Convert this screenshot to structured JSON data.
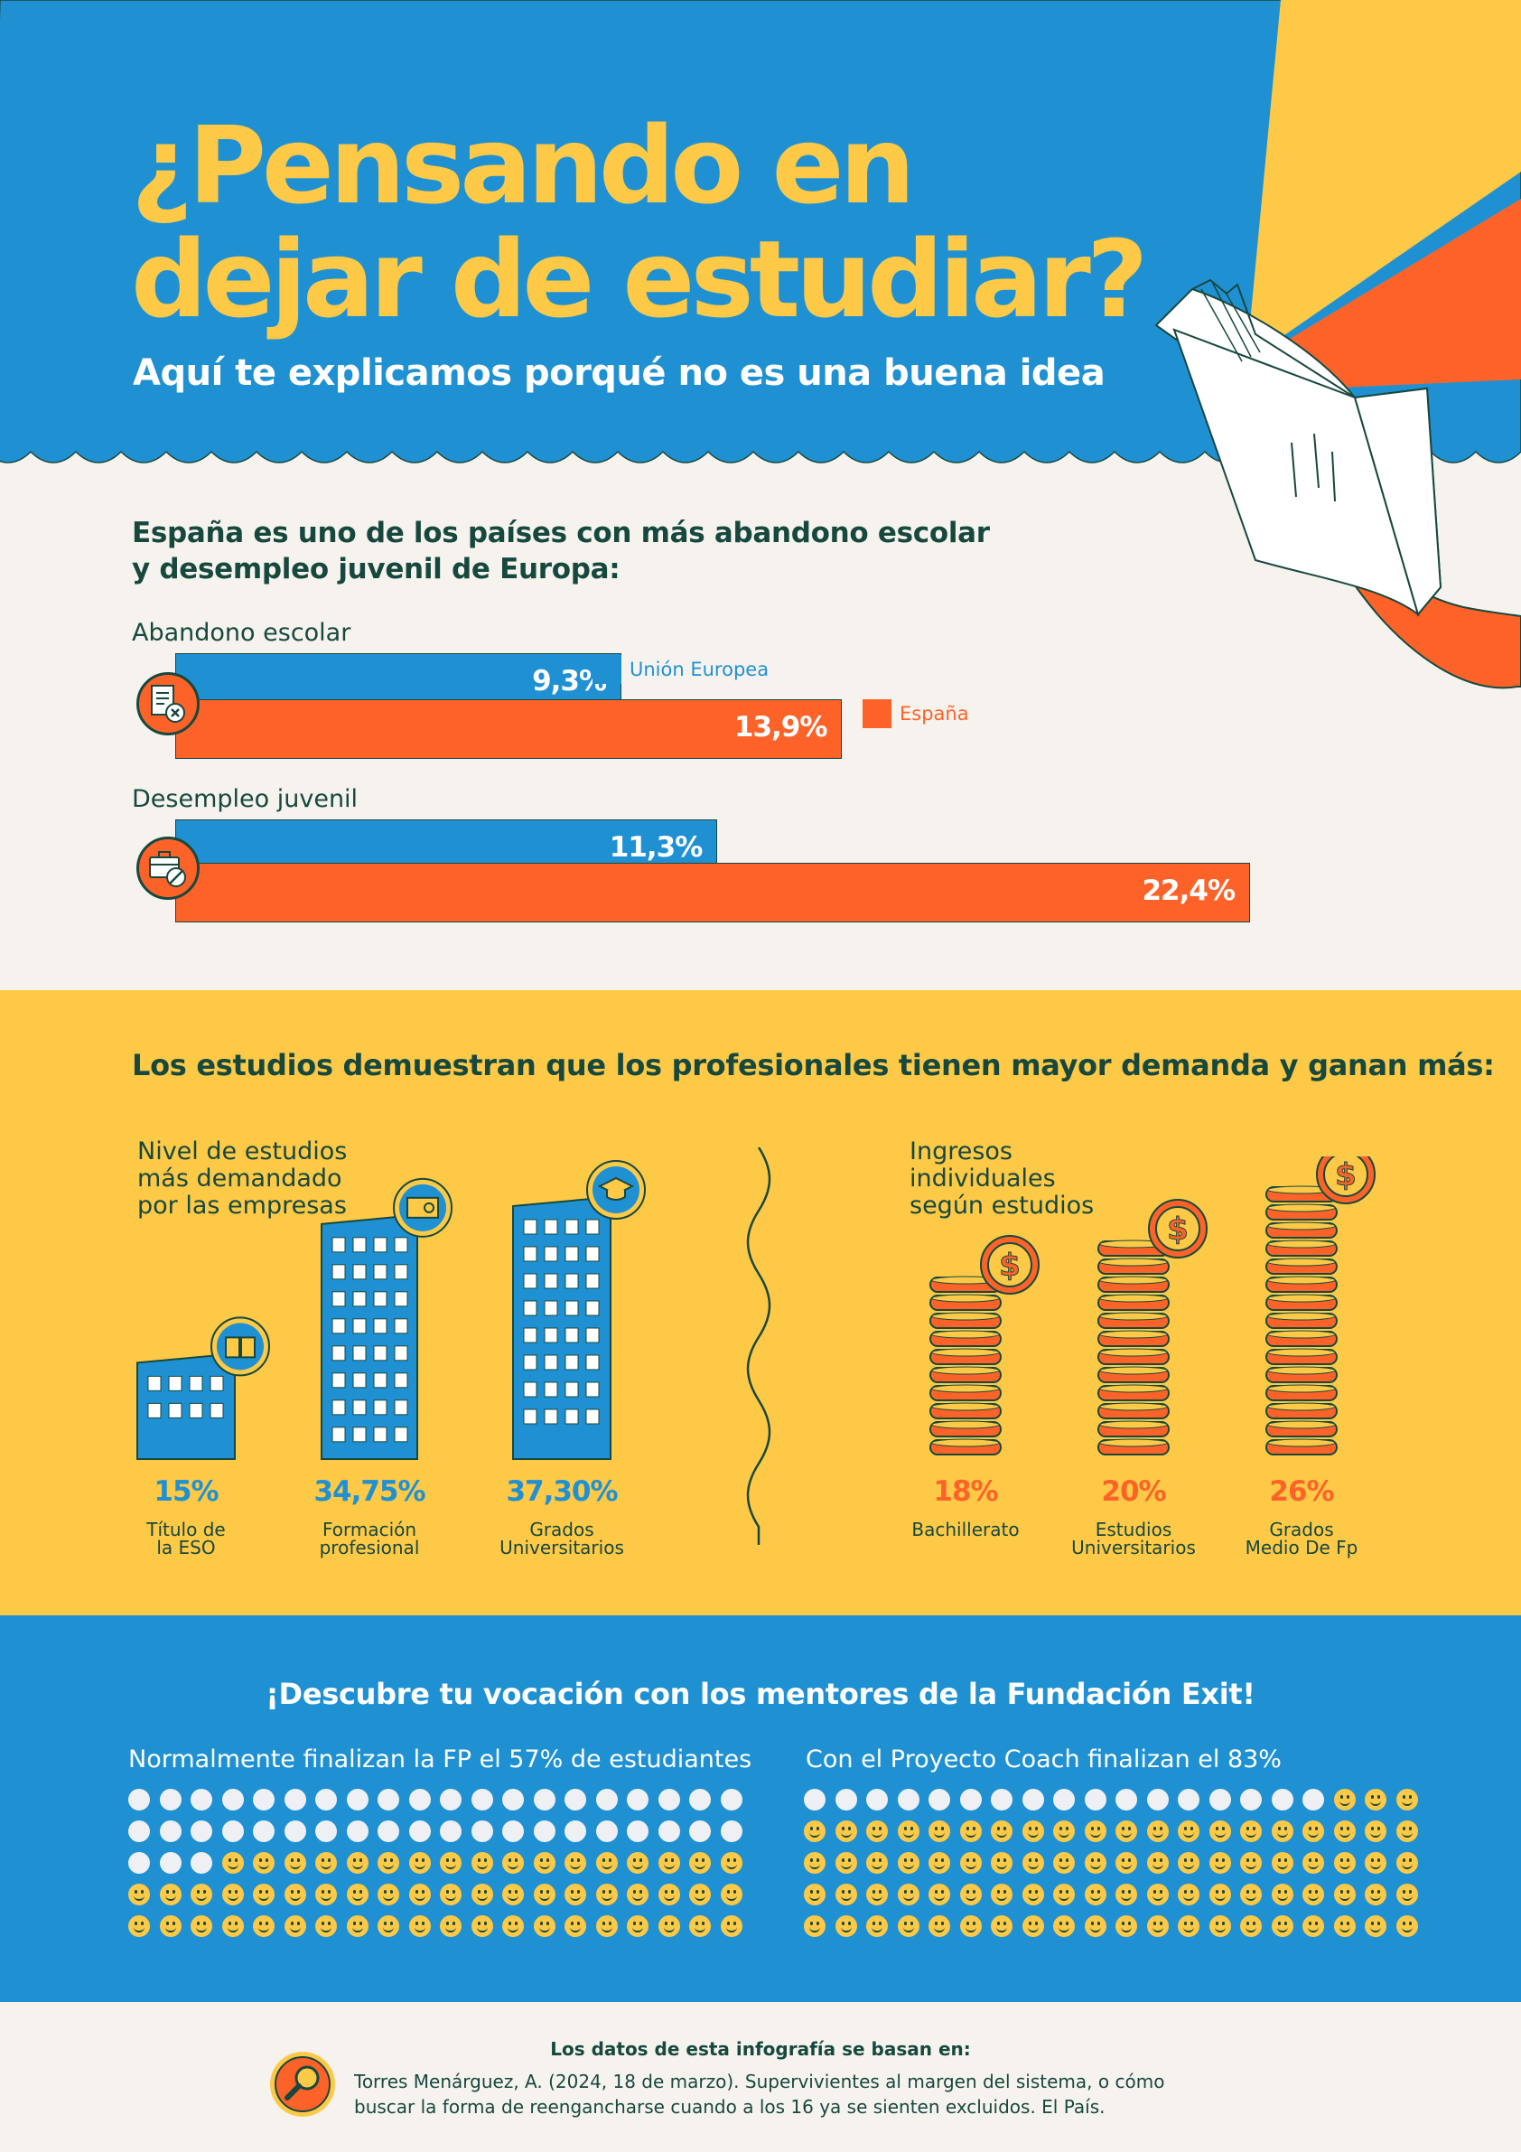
{
  "header": {
    "title_line1": "¿Pensando en",
    "title_line2": "dejar de estudiar?",
    "subtitle": "Aquí te explicamos porqué no es una buena idea"
  },
  "section1": {
    "heading_line1": "España es uno de los países con más abandono escolar",
    "heading_line2": "y desempleo juvenil de Europa:",
    "legend": {
      "eu": "Unión Europea",
      "es": "España"
    },
    "colors": {
      "eu": "#1f91d2",
      "es": "#fd6329"
    }
  },
  "section2": {
    "heading": "Los estudios demuestran que los profesionales tienen mayor demanda y ganan más:",
    "left_title": [
      "Nivel de estudios",
      "más demandado",
      "por las empresas"
    ],
    "right_title": [
      "Ingresos",
      "individuales",
      "según estudios"
    ]
  },
  "section3": {
    "heading": "¡Descubre tu vocación con los mentores de la Fundación Exit!",
    "left_label": "Normalmente finalizan la FP el 57% de estudiantes",
    "right_label": "Con el Proyecto Coach finalizan el 83%"
  },
  "footer": {
    "heading": "Los datos de esta infografía se basan en:",
    "ref_line1": "Torres Menárguez, A. (2024, 18 de marzo). Supervivientes al margen del sistema, o cómo",
    "ref_line2": "buscar la forma de reengancharse cuando a los 16 ya se sienten excluidos. El País."
  },
  "chart_data": [
    {
      "type": "bar",
      "title": "España es uno de los países con más abandono escolar y desempleo juvenil de Europa:",
      "categories": [
        "Abandono escolar",
        "Desempleo juvenil"
      ],
      "series": [
        {
          "name": "Unión Europea",
          "values": [
            9.3,
            11.3
          ],
          "labels": [
            "9,3%",
            "11,3%"
          ]
        },
        {
          "name": "España",
          "values": [
            13.9,
            22.4
          ],
          "labels": [
            "13,9%",
            "22,4%"
          ]
        }
      ]
    },
    {
      "type": "bar",
      "title": "Nivel de estudios más demandado por las empresas",
      "categories": [
        "Título de la ESO",
        "Formación profesional",
        "Grados Universitarios"
      ],
      "category_lines": [
        [
          "Título de",
          "la ESO"
        ],
        [
          "Formación",
          "profesional"
        ],
        [
          "Grados",
          "Universitarios"
        ]
      ],
      "values": [
        15,
        34.75,
        37.3
      ],
      "labels": [
        "15%",
        "34,75%",
        "37,30%"
      ]
    },
    {
      "type": "bar",
      "title": "Ingresos individuales según estudios",
      "categories": [
        "Bachillerato",
        "Estudios Universitarios",
        "Grados Medio De Fp"
      ],
      "category_lines": [
        [
          "Bachillerato"
        ],
        [
          "Estudios",
          "Universitarios"
        ],
        [
          "Grados",
          "Medio De Fp"
        ]
      ],
      "values": [
        18,
        20,
        26
      ],
      "labels": [
        "18%",
        "20%",
        "26%"
      ]
    },
    {
      "type": "table",
      "title": "Normalmente finalizan la FP el 57% de estudiantes",
      "values": [
        57
      ],
      "total": 100
    },
    {
      "type": "table",
      "title": "Con el Proyecto Coach finalizan el 83%",
      "values": [
        83
      ],
      "total": 100
    }
  ]
}
